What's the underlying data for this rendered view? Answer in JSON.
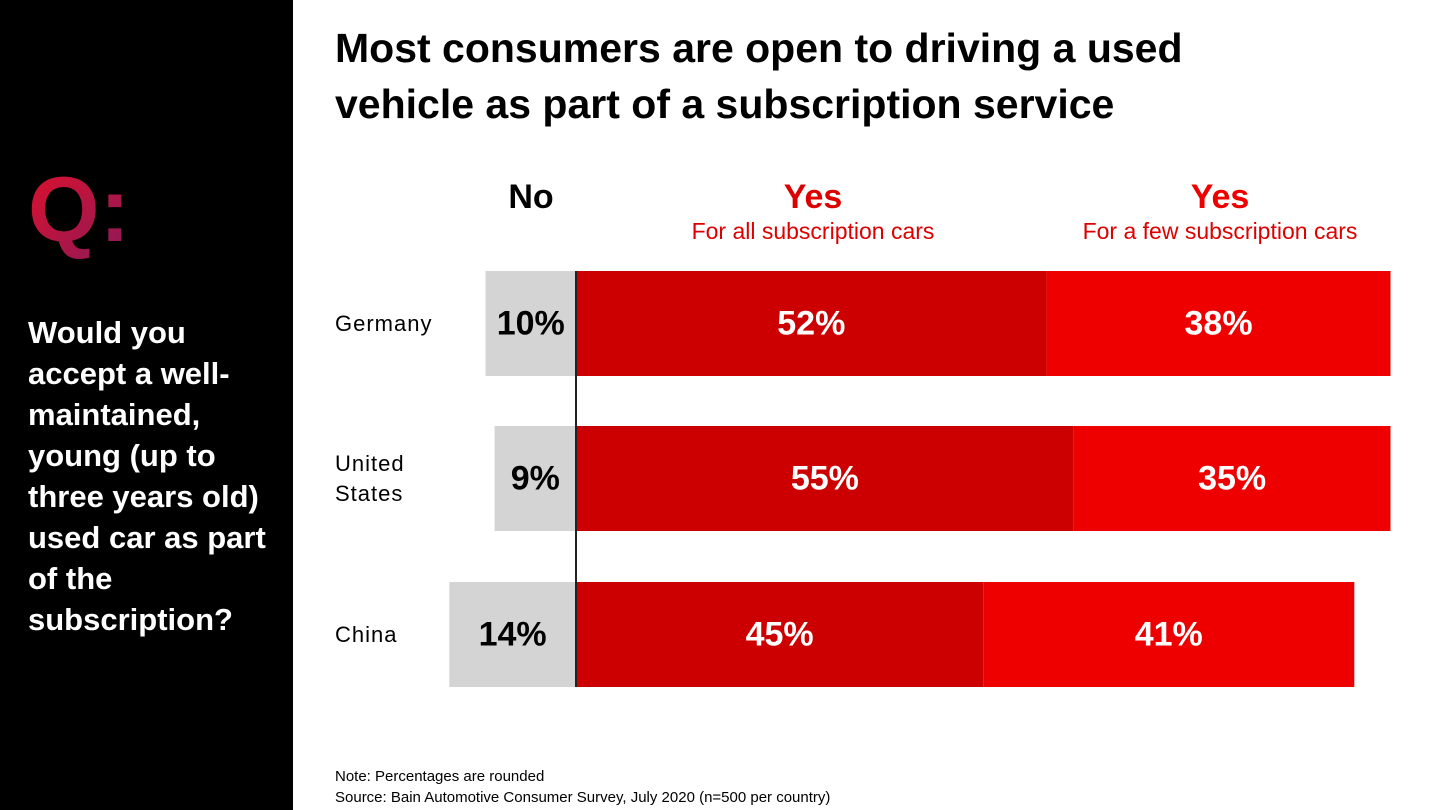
{
  "chart_data": {
    "type": "bar",
    "orientation": "horizontal",
    "stacked": true,
    "diverging": true,
    "title": "Most consumers are open to driving a used vehicle as part of a subscription service",
    "question_marker": "Q:",
    "question": "Would you accept a well-maintained, young (up to three years old) used car as part of the subscription?",
    "categories": [
      "Germany",
      "United States",
      "China"
    ],
    "series": [
      {
        "name": "No",
        "color": "#d4d4d4",
        "label_color": "#000000",
        "values": [
          10,
          9,
          14
        ],
        "value_labels": [
          "10%",
          "9%",
          "14%"
        ]
      },
      {
        "name": "Yes",
        "subtitle": "For all subscription cars",
        "color": "#cc0000",
        "label_color": "#ffffff",
        "values": [
          52,
          55,
          45
        ],
        "value_labels": [
          "52%",
          "55%",
          "45%"
        ]
      },
      {
        "name": "Yes",
        "subtitle": "For a few subscription cars",
        "color": "#ee0000",
        "label_color": "#ffffff",
        "values": [
          38,
          35,
          41
        ],
        "value_labels": [
          "38%",
          "35%",
          "41%"
        ]
      }
    ],
    "note": "Note: Percentages are rounded",
    "source": "Source: Bain Automotive Consumer Survey, July 2020 (n=500 per country)"
  }
}
